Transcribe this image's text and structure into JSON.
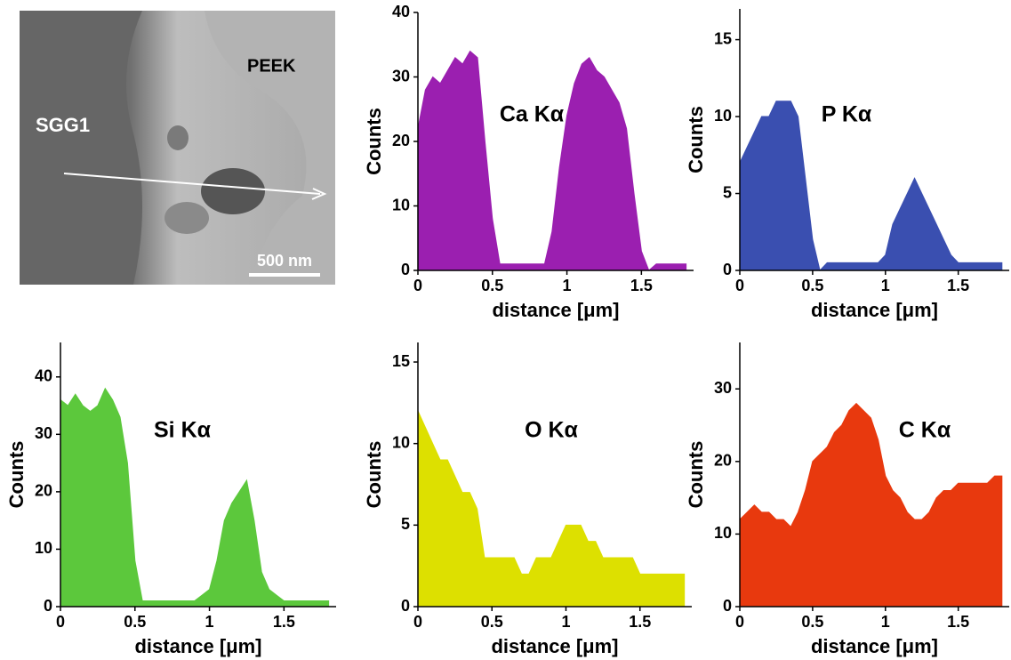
{
  "image": {
    "labels": [
      "PEEK",
      "SGG1",
      "500 nm"
    ]
  },
  "chart_data": [
    {
      "type": "area",
      "annotation": "Ca Kα",
      "xlabel": "distance [μm]",
      "ylabel": "Counts",
      "color": "#9b1fb0",
      "x": [
        0,
        0.05,
        0.1,
        0.15,
        0.2,
        0.25,
        0.3,
        0.35,
        0.4,
        0.45,
        0.5,
        0.55,
        0.6,
        0.65,
        0.7,
        0.75,
        0.8,
        0.85,
        0.9,
        0.95,
        1,
        1.05,
        1.1,
        1.15,
        1.2,
        1.25,
        1.3,
        1.35,
        1.4,
        1.45,
        1.5,
        1.55,
        1.6,
        1.65,
        1.7,
        1.75,
        1.8
      ],
      "values": [
        22,
        28,
        30,
        29,
        31,
        33,
        32,
        34,
        33,
        20,
        8,
        1,
        1,
        1,
        1,
        1,
        1,
        1,
        6,
        16,
        24,
        29,
        32,
        33,
        31,
        30,
        28,
        26,
        22,
        12,
        3,
        0,
        1,
        1,
        1,
        1,
        1
      ],
      "xlim": [
        0,
        1.85
      ],
      "ylim": [
        0,
        40
      ],
      "xticks": [
        0,
        0.5,
        1,
        1.5
      ],
      "yticks": [
        0,
        10,
        20,
        30,
        40
      ]
    },
    {
      "type": "area",
      "annotation": "P Kα",
      "xlabel": "distance [μm]",
      "ylabel": "Counts",
      "color": "#3a4fb0",
      "x": [
        0,
        0.05,
        0.1,
        0.15,
        0.2,
        0.25,
        0.3,
        0.35,
        0.4,
        0.45,
        0.5,
        0.55,
        0.6,
        0.65,
        0.7,
        0.75,
        0.8,
        0.85,
        0.9,
        0.95,
        1,
        1.05,
        1.1,
        1.15,
        1.2,
        1.25,
        1.3,
        1.35,
        1.4,
        1.45,
        1.5,
        1.55,
        1.6,
        1.65,
        1.7,
        1.75,
        1.8
      ],
      "values": [
        7,
        8,
        9,
        10,
        10,
        11,
        11,
        11,
        10,
        6,
        2,
        0,
        0.5,
        0.5,
        0.5,
        0.5,
        0.5,
        0.5,
        0.5,
        0.5,
        1,
        3,
        4,
        5,
        6,
        5,
        4,
        3,
        2,
        1,
        0.5,
        0.5,
        0.5,
        0.5,
        0.5,
        0.5,
        0.5
      ],
      "xlim": [
        0,
        1.85
      ],
      "ylim": [
        0,
        17
      ],
      "xticks": [
        0,
        0.5,
        1,
        1.5
      ],
      "yticks": [
        0,
        5,
        10,
        15
      ]
    },
    {
      "type": "area",
      "annotation": "Si Kα",
      "xlabel": "distance [μm]",
      "ylabel": "Counts",
      "color": "#5cc83c",
      "x": [
        0,
        0.05,
        0.1,
        0.15,
        0.2,
        0.25,
        0.3,
        0.35,
        0.4,
        0.45,
        0.5,
        0.55,
        0.6,
        0.65,
        0.7,
        0.75,
        0.8,
        0.85,
        0.9,
        0.95,
        1,
        1.05,
        1.1,
        1.15,
        1.2,
        1.25,
        1.3,
        1.35,
        1.4,
        1.45,
        1.5,
        1.55,
        1.6,
        1.65,
        1.7,
        1.75,
        1.8
      ],
      "values": [
        36,
        35,
        37,
        35,
        34,
        35,
        38,
        36,
        33,
        25,
        8,
        1,
        1,
        1,
        1,
        1,
        1,
        1,
        1,
        2,
        3,
        8,
        15,
        18,
        20,
        22,
        15,
        6,
        3,
        2,
        1,
        1,
        1,
        1,
        1,
        1,
        1
      ],
      "xlim": [
        0,
        1.85
      ],
      "ylim": [
        0,
        46
      ],
      "xticks": [
        0,
        0.5,
        1,
        1.5
      ],
      "yticks": [
        0,
        10,
        20,
        30,
        40
      ]
    },
    {
      "type": "area",
      "annotation": "O Kα",
      "xlabel": "distance [μm]",
      "ylabel": "Counts",
      "color": "#dde000",
      "x": [
        0,
        0.05,
        0.1,
        0.15,
        0.2,
        0.25,
        0.3,
        0.35,
        0.4,
        0.45,
        0.5,
        0.55,
        0.6,
        0.65,
        0.7,
        0.75,
        0.8,
        0.85,
        0.9,
        0.95,
        1,
        1.05,
        1.1,
        1.15,
        1.2,
        1.25,
        1.3,
        1.35,
        1.4,
        1.45,
        1.5,
        1.55,
        1.6,
        1.65,
        1.7,
        1.75,
        1.8
      ],
      "values": [
        12,
        11,
        10,
        9,
        9,
        8,
        7,
        7,
        6,
        3,
        3,
        3,
        3,
        3,
        2,
        2,
        3,
        3,
        3,
        4,
        5,
        5,
        5,
        4,
        4,
        3,
        3,
        3,
        3,
        3,
        2,
        2,
        2,
        2,
        2,
        2,
        2
      ],
      "xlim": [
        0,
        1.85
      ],
      "ylim": [
        0,
        16.2
      ],
      "xticks": [
        0,
        0.5,
        1,
        1.5
      ],
      "yticks": [
        0,
        5,
        10,
        15
      ]
    },
    {
      "type": "area",
      "annotation": "C Kα",
      "xlabel": "distance [μm]",
      "ylabel": "Counts",
      "color": "#e8390e",
      "x": [
        0,
        0.05,
        0.1,
        0.15,
        0.2,
        0.25,
        0.3,
        0.35,
        0.4,
        0.45,
        0.5,
        0.55,
        0.6,
        0.65,
        0.7,
        0.75,
        0.8,
        0.85,
        0.9,
        0.95,
        1,
        1.05,
        1.1,
        1.15,
        1.2,
        1.25,
        1.3,
        1.35,
        1.4,
        1.45,
        1.5,
        1.55,
        1.6,
        1.65,
        1.7,
        1.75,
        1.8
      ],
      "values": [
        12,
        13,
        14,
        13,
        13,
        12,
        12,
        11,
        13,
        16,
        20,
        21,
        22,
        24,
        25,
        27,
        28,
        27,
        26,
        23,
        18,
        16,
        15,
        13,
        12,
        12,
        13,
        15,
        16,
        16,
        17,
        17,
        17,
        17,
        17,
        18,
        18
      ],
      "xlim": [
        0,
        1.85
      ],
      "ylim": [
        0,
        36.4
      ],
      "xticks": [
        0,
        0.5,
        1,
        1.5
      ],
      "yticks": [
        0,
        10,
        20,
        30
      ]
    }
  ]
}
